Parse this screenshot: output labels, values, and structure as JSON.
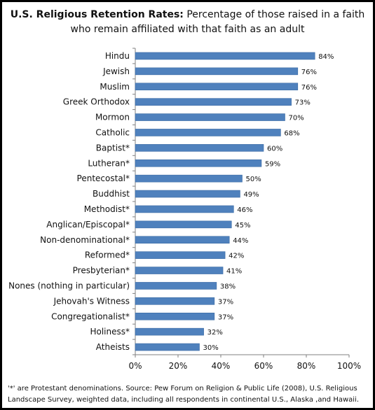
{
  "chart_data": {
    "type": "bar",
    "orientation": "horizontal",
    "title": "U.S. Religious Retention Rates:",
    "subtitle": "Percentage of those raised in a faith who remain affiliated with that faith as an adult",
    "categories": [
      "Hindu",
      "Jewish",
      "Muslim",
      "Greek Orthodox",
      "Mormon",
      "Catholic",
      "Baptist*",
      "Lutheran*",
      "Pentecostal*",
      "Buddhist",
      "Methodist*",
      "Anglican/Episcopal*",
      "Non-denominational*",
      "Reformed*",
      "Presbyterian*",
      "Nones (nothing in particular)",
      "Jehovah's Witness",
      "Congregationalist*",
      "Holiness*",
      "Atheists"
    ],
    "values": [
      84,
      76,
      76,
      73,
      70,
      68,
      60,
      59,
      50,
      49,
      46,
      45,
      44,
      42,
      41,
      38,
      37,
      37,
      32,
      30
    ],
    "data_labels": [
      "84%",
      "76%",
      "76%",
      "73%",
      "70%",
      "68%",
      "60%",
      "59%",
      "50%",
      "49%",
      "46%",
      "45%",
      "44%",
      "42%",
      "41%",
      "38%",
      "37%",
      "37%",
      "32%",
      "30%"
    ],
    "xticks": [
      0,
      20,
      40,
      60,
      80,
      100
    ],
    "xtick_labels": [
      "0%",
      "20%",
      "40%",
      "60%",
      "80%",
      "100%"
    ],
    "xlim": [
      0,
      100
    ],
    "xlabel": "",
    "ylabel": "",
    "grid": false,
    "legend": "none",
    "bar_color": "#4f81bd"
  },
  "footnote": "'*' are Protestant denominations. Source: Pew Forum on Religion & Public Life (2008), U.S. Religious Landscape Survey, weighted data, including all respondents in continental U.S., Alaska ,and Hawaii."
}
